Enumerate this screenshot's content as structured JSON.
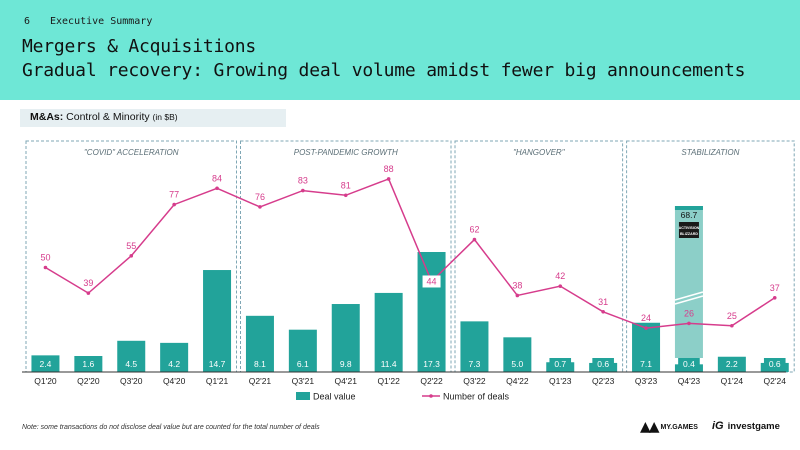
{
  "header": {
    "page_number": "6",
    "section": "Executive Summary",
    "title": "Mergers & Acquisitions",
    "subtitle": "Gradual recovery: Growing deal volume amidst fewer big announcements"
  },
  "chart_label": {
    "bold": "M&As:",
    "text": " Control & Minority ",
    "unit": "(in $B)"
  },
  "note": "Note: some transactions do not disclose deal value but are counted for the total number of deals",
  "logos": {
    "mygames_text": "MY.GAMES",
    "investgame_text": "investgame"
  },
  "colors": {
    "bar": "#22a39a",
    "bar_highlight": "#8ccfc8",
    "line": "#d63c8c",
    "header_bg": "#6ee7d6"
  },
  "chart_data": {
    "type": "bar",
    "title": "M&As: Control & Minority (in $B)",
    "categories": [
      "Q1'20",
      "Q2'20",
      "Q3'20",
      "Q4'20",
      "Q1'21",
      "Q2'21",
      "Q3'21",
      "Q4'21",
      "Q1'22",
      "Q2'22",
      "Q3'22",
      "Q4'22",
      "Q1'23",
      "Q2'23",
      "Q3'23",
      "Q4'23",
      "Q1'24",
      "Q2'24"
    ],
    "series": [
      {
        "name": "Deal value",
        "type": "bar",
        "values": [
          2.4,
          1.6,
          4.5,
          4.2,
          14.7,
          8.1,
          6.1,
          9.8,
          11.4,
          17.3,
          7.3,
          5.0,
          0.7,
          0.6,
          7.1,
          0.4,
          2.2,
          0.6
        ],
        "labels": [
          "2.4",
          "1.6",
          "4.5",
          "4.2",
          "14.7",
          "8.1",
          "6.1",
          "9.8",
          "11.4",
          "17.3",
          "7.3",
          "5.0",
          "0.7",
          "0.6",
          "7.1",
          "0.4",
          "2.2",
          "0.6"
        ]
      },
      {
        "name": "Number of deals",
        "type": "line",
        "values": [
          50,
          39,
          55,
          77,
          84,
          76,
          83,
          81,
          88,
          44,
          62,
          38,
          42,
          31,
          24,
          26,
          25,
          37
        ]
      }
    ],
    "highlight": {
      "category": "Q4'23",
      "value": 68.7,
      "label": "68.7",
      "annotation": "ACTIVISION BLIZZARD"
    },
    "periods": [
      {
        "name": "\"COVID\" ACCELERATION",
        "start": 0,
        "end": 4
      },
      {
        "name": "POST-PANDEMIC GROWTH",
        "start": 5,
        "end": 9
      },
      {
        "name": "\"HANGOVER\"",
        "start": 10,
        "end": 13
      },
      {
        "name": "STABILIZATION",
        "start": 14,
        "end": 17
      }
    ],
    "legend": [
      "Deal value",
      "Number of deals"
    ],
    "legend_position": "bottom"
  }
}
